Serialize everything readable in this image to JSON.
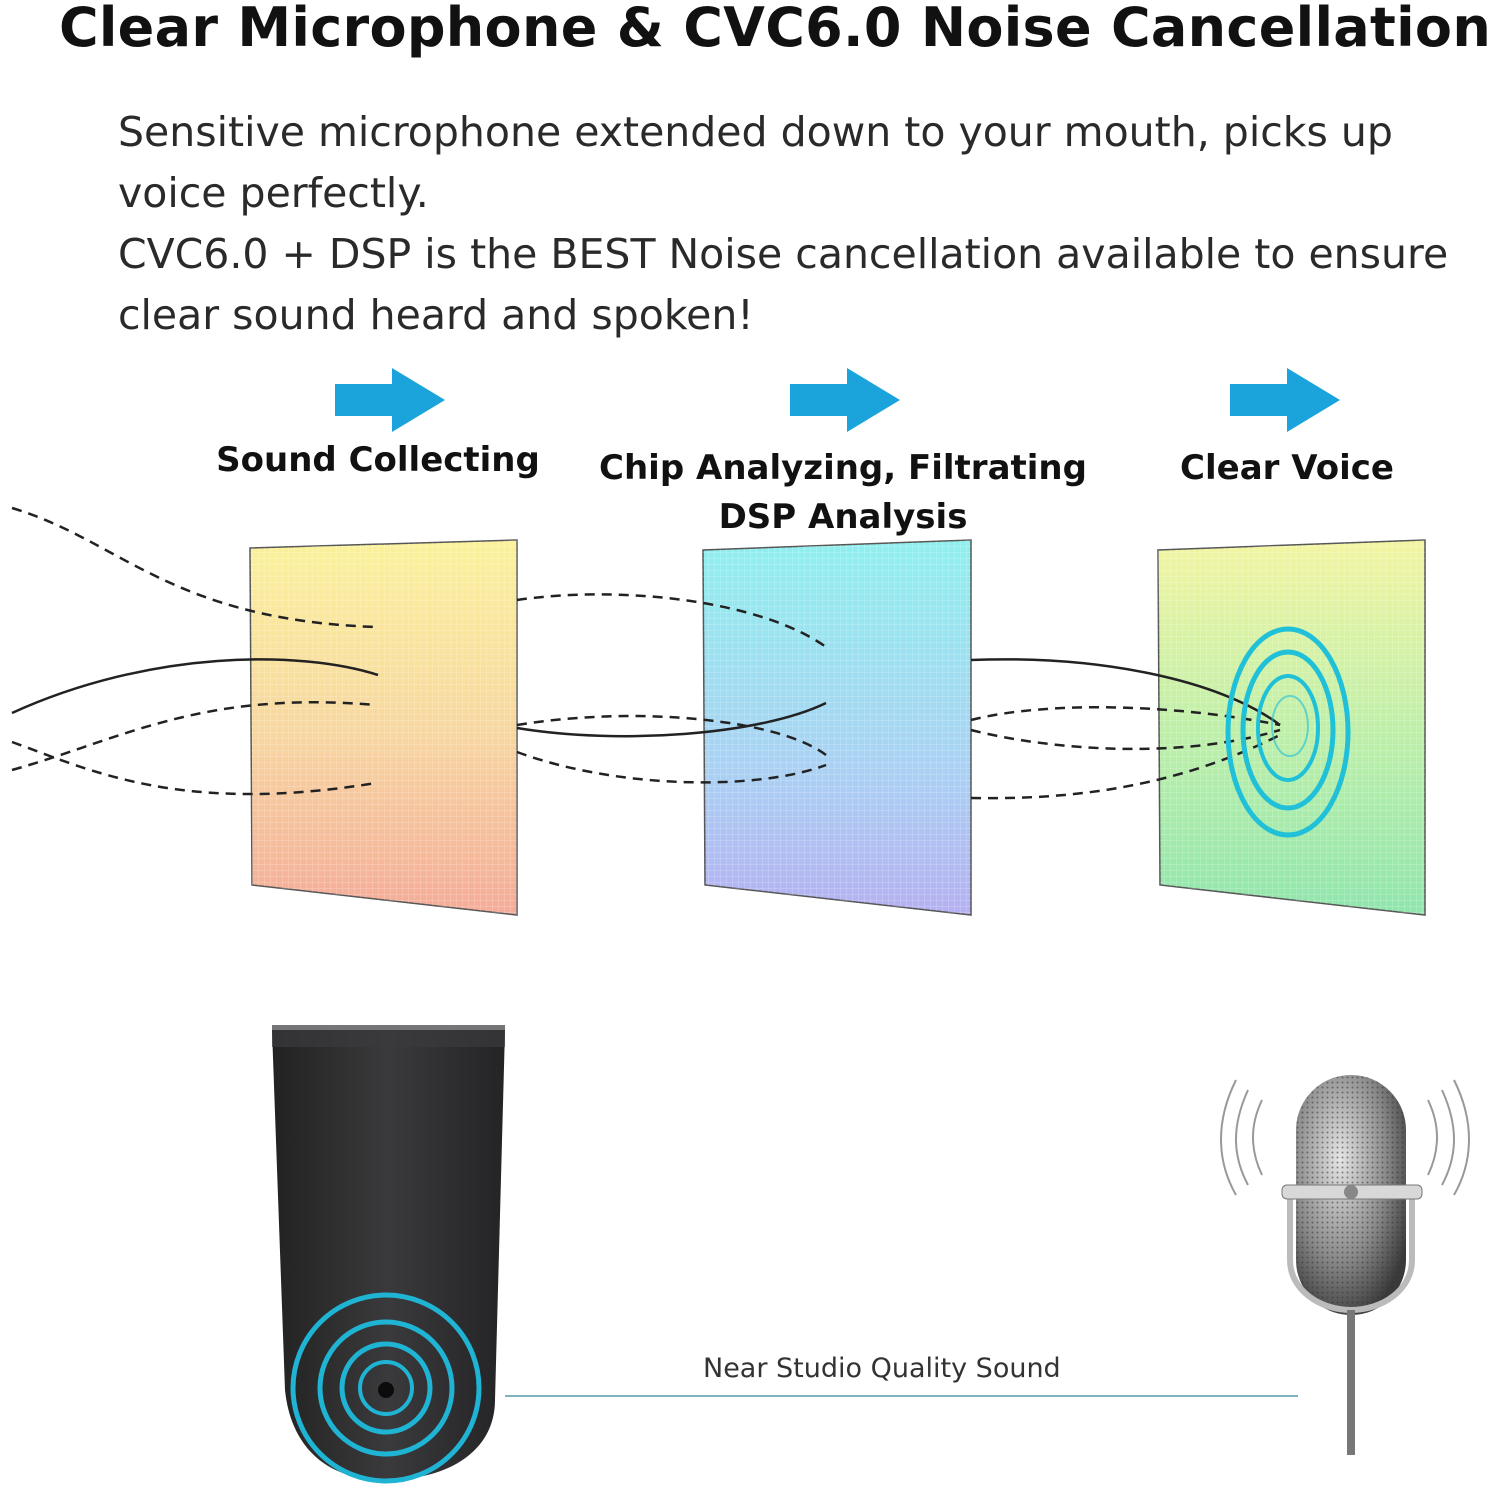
{
  "title": "Clear Microphone & CVC6.0 Noise Cancellation",
  "description": {
    "lines": [
      "Sensitive microphone extended down to your mouth, picks up",
      "voice perfectly.",
      "CVC6.0 + DSP is the BEST Noise cancellation available to ensure",
      "clear sound heard and spoken!"
    ]
  },
  "stages": [
    {
      "label_lines": [
        "Sound Collecting"
      ],
      "icon": "arrow-right-icon"
    },
    {
      "label_lines": [
        "Chip Analyzing, Filtrating",
        "DSP Analysis"
      ],
      "icon": "arrow-right-icon"
    },
    {
      "label_lines": [
        "Clear Voice"
      ],
      "icon": "arrow-right-icon"
    }
  ],
  "caption": "Near Studio Quality Sound",
  "colors": {
    "accent": "#1ba3dc",
    "ring": "#1fc0d8",
    "headset": "#2b2b2d"
  }
}
